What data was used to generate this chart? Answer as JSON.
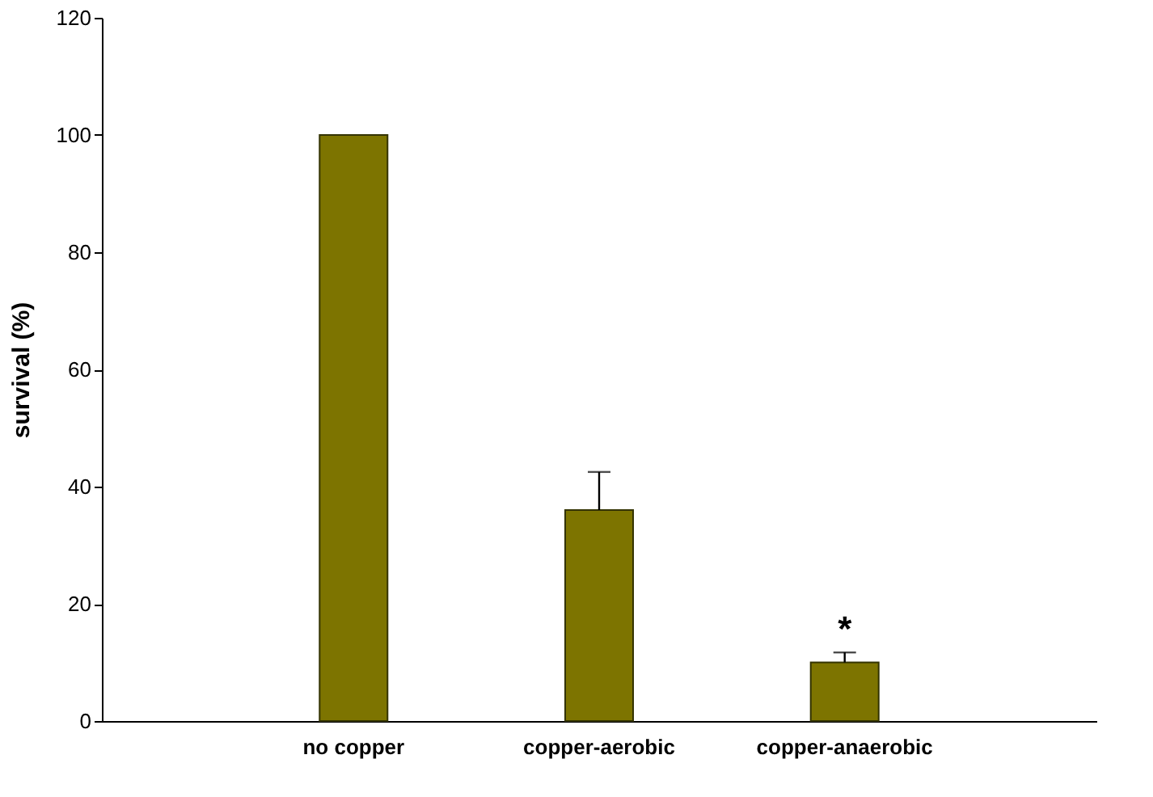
{
  "chart_data": {
    "type": "bar",
    "ylabel": "survival (%)",
    "categories": [
      "no copper",
      "copper-aerobic",
      "copper-anaerobic"
    ],
    "values": [
      100,
      36,
      10
    ],
    "color": "#7d7400",
    "errors": [
      null,
      [
        36,
        42.5
      ],
      [
        10,
        11.7
      ]
    ],
    "ylim": [
      0,
      120
    ],
    "yticks": [
      0,
      20,
      40,
      60,
      80,
      100,
      120
    ],
    "grid": false,
    "annotations": [
      "*"
    ]
  }
}
